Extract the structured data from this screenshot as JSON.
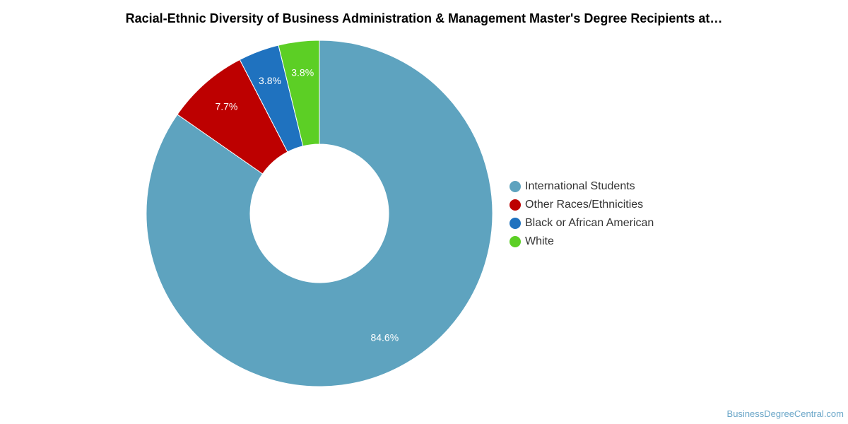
{
  "chart_data": {
    "type": "pie",
    "title": "Racial-Ethnic Diversity of Business Administration & Management Master's Degree Recipients at…",
    "donut": true,
    "legend_position": "right",
    "categories": [
      "International Students",
      "Other Races/Ethnicities",
      "Black or African American",
      "White"
    ],
    "values": [
      84.6,
      7.7,
      3.8,
      3.8
    ],
    "value_labels": [
      "84.6%",
      "7.7%",
      "3.8%",
      "3.8%"
    ],
    "colors": [
      "#5ea3bf",
      "#bd0000",
      "#1f72bf",
      "#5ccf25"
    ]
  },
  "credit": "BusinessDegreeCentral.com"
}
